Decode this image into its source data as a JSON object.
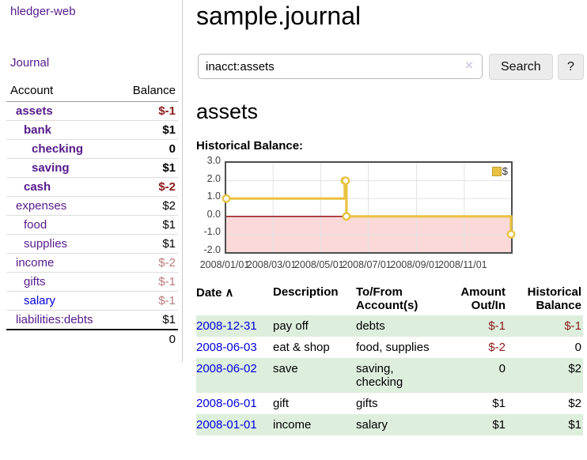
{
  "sidebar": {
    "brand": "hledger-web",
    "journal_link": "Journal",
    "accounts_table": {
      "headers": [
        "Account",
        "Balance"
      ],
      "rows": [
        {
          "account": "assets",
          "indent": 1,
          "in_acct": true,
          "link_color": "purple",
          "balance": "$-1",
          "balance_style": "neg-strong"
        },
        {
          "account": "bank",
          "indent": 2,
          "in_acct": true,
          "link_color": "purple",
          "balance": "$1",
          "balance_style": ""
        },
        {
          "account": "checking",
          "indent": 3,
          "in_acct": true,
          "link_color": "purple",
          "balance": "0",
          "balance_style": ""
        },
        {
          "account": "saving",
          "indent": 3,
          "in_acct": true,
          "link_color": "purple",
          "balance": "$1",
          "balance_style": ""
        },
        {
          "account": "cash",
          "indent": 2,
          "in_acct": true,
          "link_color": "purple",
          "balance": "$-2",
          "balance_style": "neg-strong"
        },
        {
          "account": "expenses",
          "indent": 1,
          "in_acct": false,
          "link_color": "purple",
          "balance": "$2",
          "balance_style": ""
        },
        {
          "account": "food",
          "indent": 2,
          "in_acct": false,
          "link_color": "purple",
          "balance": "$1",
          "balance_style": ""
        },
        {
          "account": "supplies",
          "indent": 2,
          "in_acct": false,
          "link_color": "purple",
          "balance": "$1",
          "balance_style": ""
        },
        {
          "account": "income",
          "indent": 1,
          "in_acct": false,
          "link_color": "purple",
          "balance": "$-2",
          "balance_style": "neg-light"
        },
        {
          "account": "gifts",
          "indent": 2,
          "in_acct": false,
          "link_color": "purple",
          "balance": "$-1",
          "balance_style": "neg-light"
        },
        {
          "account": "salary",
          "indent": 2,
          "in_acct": false,
          "link_color": "blue",
          "balance": "$-1",
          "balance_style": "neg-light"
        },
        {
          "account": "liabilities:debts",
          "indent": 1,
          "in_acct": false,
          "link_color": "purple",
          "balance": "$1",
          "balance_style": ""
        }
      ],
      "total": "0"
    }
  },
  "header": {
    "title": "sample.journal"
  },
  "search": {
    "value": "inacct:assets",
    "clear_icon": "×",
    "search_button": "Search",
    "help_button": "?"
  },
  "account_view": {
    "heading": "assets",
    "chart_title": "Historical Balance:"
  },
  "chart_data": {
    "type": "line",
    "step": true,
    "title": "Historical Balance",
    "legend": {
      "label": "$",
      "position": "top-right"
    },
    "series": [
      {
        "name": "$",
        "points": [
          {
            "date": "2008-01-01",
            "value": 1
          },
          {
            "date": "2008-06-01",
            "value": 2
          },
          {
            "date": "2008-06-02",
            "value": 2
          },
          {
            "date": "2008-06-03",
            "value": 0
          },
          {
            "date": "2008-12-31",
            "value": -1
          }
        ]
      }
    ],
    "x_range": [
      "2008-01-01",
      "2008-12-31"
    ],
    "ylim": [
      -2,
      3
    ],
    "grid": true,
    "y_ticks": [
      {
        "label": "3.0",
        "value": 3
      },
      {
        "label": "2.0",
        "value": 2
      },
      {
        "label": "1.0",
        "value": 1
      },
      {
        "label": "0.0",
        "value": 0
      },
      {
        "label": "-1.0",
        "value": -1
      },
      {
        "label": "-2.0",
        "value": -2
      }
    ],
    "x_ticks": [
      {
        "label": "2008/01/01",
        "date": "2008-01-01"
      },
      {
        "label": "2008/03/01",
        "date": "2008-03-01"
      },
      {
        "label": "2008/05/01",
        "date": "2008-05-01"
      },
      {
        "label": "2008/07/01",
        "date": "2008-07-01"
      },
      {
        "label": "2008/09/01",
        "date": "2008-09-01"
      },
      {
        "label": "2008/11/01",
        "date": "2008-11-01"
      }
    ],
    "colors": {
      "line": "#e9c342",
      "negative_area": "#fbd9d9",
      "zero_line": "#8b0000",
      "grid": "#e2e2e2",
      "border": "#4d4d4d"
    }
  },
  "register": {
    "sort_arrow": "∧",
    "headers": {
      "date": "Date",
      "description": "Description",
      "accounts": "To/From Account(s)",
      "amount": "Amount Out/In",
      "balance": "Historical Balance"
    },
    "rows": [
      {
        "date": "2008-12-31",
        "description": "pay off",
        "accounts": "debts",
        "amount": "$-1",
        "amount_negative": true,
        "balance": "$-1",
        "balance_negative": true
      },
      {
        "date": "2008-06-03",
        "description": "eat & shop",
        "accounts": "food, supplies",
        "amount": "$-2",
        "amount_negative": true,
        "balance": "0",
        "balance_negative": false
      },
      {
        "date": "2008-06-02",
        "description": "save",
        "accounts": "saving, checking",
        "amount": "0",
        "amount_negative": false,
        "balance": "$2",
        "balance_negative": false
      },
      {
        "date": "2008-06-01",
        "description": "gift",
        "accounts": "gifts",
        "amount": "$1",
        "amount_negative": false,
        "balance": "$2",
        "balance_negative": false
      },
      {
        "date": "2008-01-01",
        "description": "income",
        "accounts": "salary",
        "amount": "$1",
        "amount_negative": false,
        "balance": "$1",
        "balance_negative": false
      }
    ]
  },
  "colors": {
    "link_purple": "#551a8b",
    "link_blue": "#0000dd",
    "negative_strong": "#8b1a1a",
    "negative_light": "#bb7b7b",
    "register_row_green": "#ddeedd"
  }
}
